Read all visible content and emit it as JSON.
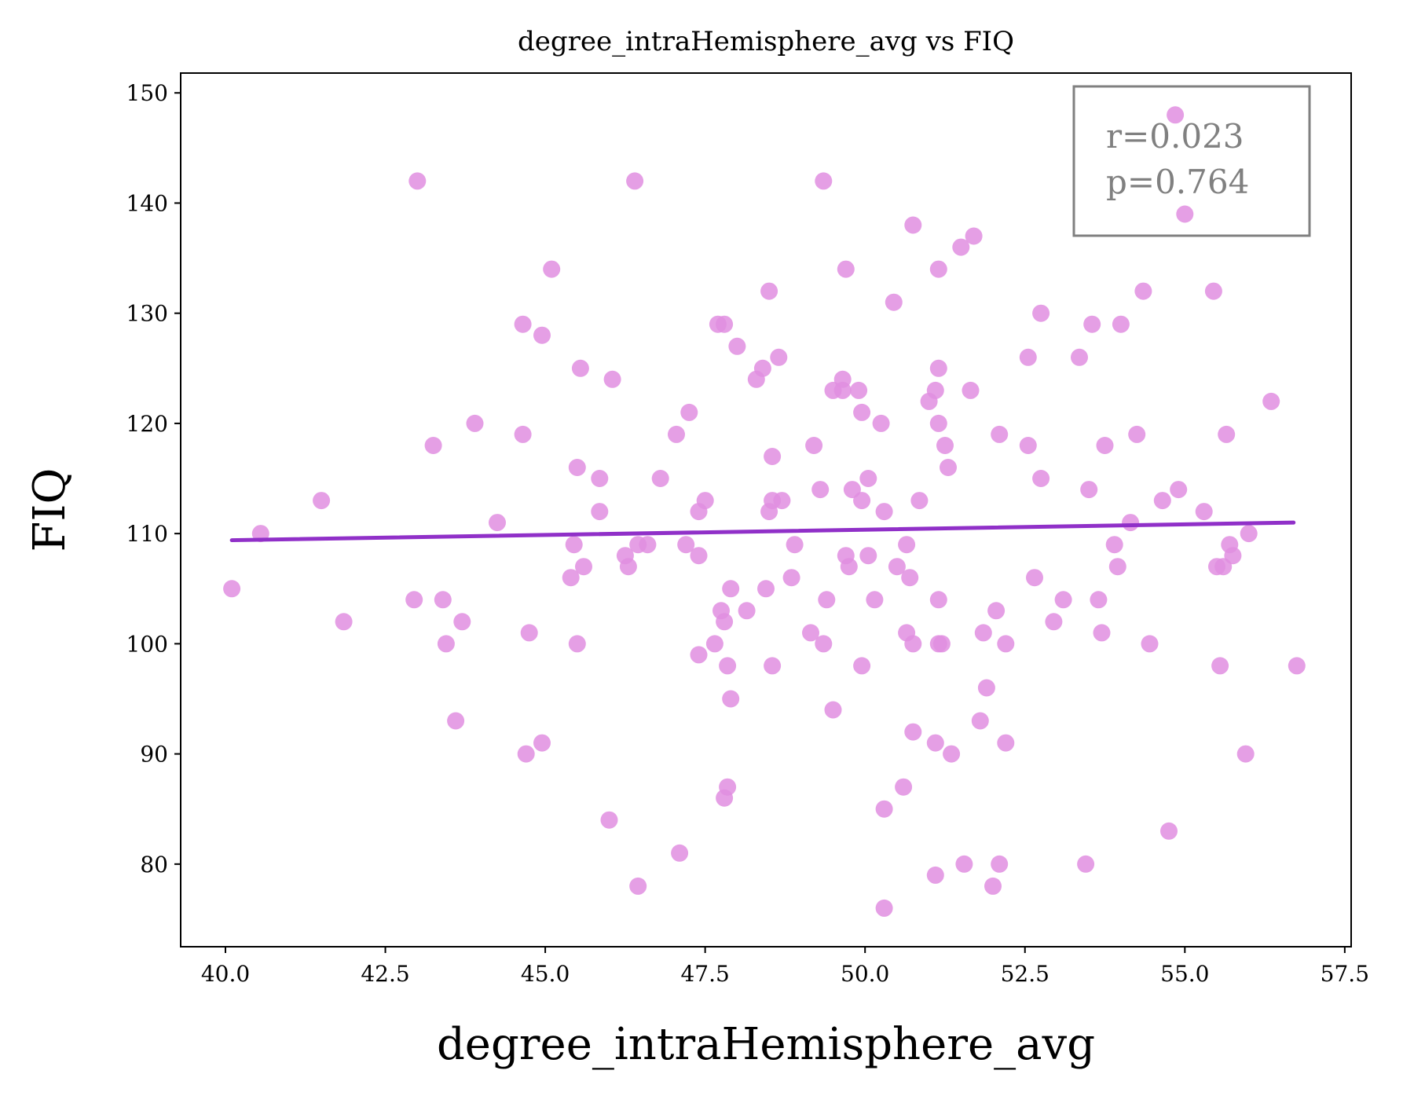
{
  "chart_data": {
    "type": "scatter",
    "title": "degree_intraHemisphere_avg vs FIQ",
    "xlabel": "degree_intraHemisphere_avg",
    "ylabel": "FIQ",
    "xlim": [
      39.3,
      57.6
    ],
    "ylim": [
      72.5,
      151.8
    ],
    "xticks": [
      40.0,
      42.5,
      45.0,
      47.5,
      50.0,
      52.5,
      55.0,
      57.5
    ],
    "xtick_labels": [
      "40.0",
      "42.5",
      "45.0",
      "47.5",
      "50.0",
      "52.5",
      "55.0",
      "57.5"
    ],
    "yticks": [
      80,
      90,
      100,
      110,
      120,
      130,
      140,
      150
    ],
    "ytick_labels": [
      "80",
      "90",
      "100",
      "110",
      "120",
      "130",
      "140",
      "150"
    ],
    "grid": false,
    "point_color": "#e08ee0",
    "line_color": "#9030c8",
    "annotation": {
      "line1": "r=0.023",
      "line2": "p=0.764",
      "placement": "top-right"
    },
    "regression": {
      "x": [
        40.1,
        56.7
      ],
      "y": [
        109.4,
        111.0
      ]
    },
    "points": [
      [
        40.1,
        105
      ],
      [
        40.55,
        110
      ],
      [
        41.5,
        113
      ],
      [
        41.85,
        102
      ],
      [
        42.95,
        104
      ],
      [
        43.0,
        142
      ],
      [
        43.25,
        118
      ],
      [
        43.4,
        104
      ],
      [
        43.45,
        100
      ],
      [
        43.6,
        93
      ],
      [
        43.7,
        102
      ],
      [
        43.9,
        120
      ],
      [
        44.25,
        111
      ],
      [
        44.65,
        129
      ],
      [
        44.65,
        119
      ],
      [
        44.7,
        90
      ],
      [
        44.75,
        101
      ],
      [
        44.95,
        91
      ],
      [
        44.95,
        128
      ],
      [
        45.1,
        134
      ],
      [
        45.4,
        106
      ],
      [
        45.45,
        109
      ],
      [
        45.5,
        116
      ],
      [
        45.5,
        100
      ],
      [
        45.55,
        125
      ],
      [
        45.6,
        107
      ],
      [
        45.85,
        115
      ],
      [
        45.85,
        112
      ],
      [
        46.0,
        84
      ],
      [
        46.05,
        124
      ],
      [
        46.25,
        108
      ],
      [
        46.3,
        107
      ],
      [
        46.4,
        142
      ],
      [
        46.45,
        109
      ],
      [
        46.45,
        78
      ],
      [
        46.6,
        109
      ],
      [
        46.8,
        115
      ],
      [
        47.05,
        119
      ],
      [
        47.1,
        81
      ],
      [
        47.2,
        109
      ],
      [
        47.25,
        121
      ],
      [
        47.4,
        108
      ],
      [
        47.4,
        112
      ],
      [
        47.4,
        99
      ],
      [
        47.5,
        113
      ],
      [
        47.65,
        100
      ],
      [
        47.7,
        129
      ],
      [
        47.75,
        103
      ],
      [
        47.8,
        102
      ],
      [
        47.8,
        129
      ],
      [
        47.8,
        86
      ],
      [
        47.85,
        98
      ],
      [
        47.85,
        87
      ],
      [
        47.9,
        105
      ],
      [
        47.9,
        95
      ],
      [
        48.0,
        127
      ],
      [
        48.15,
        103
      ],
      [
        48.3,
        124
      ],
      [
        48.4,
        125
      ],
      [
        48.45,
        105
      ],
      [
        48.5,
        112
      ],
      [
        48.5,
        132
      ],
      [
        48.55,
        117
      ],
      [
        48.55,
        98
      ],
      [
        48.55,
        113
      ],
      [
        48.65,
        126
      ],
      [
        48.7,
        113
      ],
      [
        48.85,
        106
      ],
      [
        48.9,
        109
      ],
      [
        49.15,
        101
      ],
      [
        49.2,
        118
      ],
      [
        49.3,
        114
      ],
      [
        49.35,
        100
      ],
      [
        49.35,
        142
      ],
      [
        49.4,
        104
      ],
      [
        49.5,
        123
      ],
      [
        49.5,
        94
      ],
      [
        49.65,
        124
      ],
      [
        49.65,
        123
      ],
      [
        49.7,
        134
      ],
      [
        49.7,
        108
      ],
      [
        49.75,
        107
      ],
      [
        49.8,
        114
      ],
      [
        49.9,
        123
      ],
      [
        49.95,
        121
      ],
      [
        49.95,
        113
      ],
      [
        49.95,
        98
      ],
      [
        50.05,
        115
      ],
      [
        50.05,
        108
      ],
      [
        50.15,
        104
      ],
      [
        50.25,
        120
      ],
      [
        50.3,
        112
      ],
      [
        50.3,
        85
      ],
      [
        50.3,
        76
      ],
      [
        50.45,
        131
      ],
      [
        50.5,
        107
      ],
      [
        50.6,
        87
      ],
      [
        50.65,
        101
      ],
      [
        50.65,
        109
      ],
      [
        50.7,
        106
      ],
      [
        50.75,
        138
      ],
      [
        50.75,
        100
      ],
      [
        50.75,
        92
      ],
      [
        50.85,
        113
      ],
      [
        51.0,
        122
      ],
      [
        51.1,
        79
      ],
      [
        51.1,
        91
      ],
      [
        51.1,
        123
      ],
      [
        51.15,
        134
      ],
      [
        51.15,
        125
      ],
      [
        51.15,
        120
      ],
      [
        51.15,
        104
      ],
      [
        51.15,
        100
      ],
      [
        51.2,
        100
      ],
      [
        51.25,
        118
      ],
      [
        51.3,
        116
      ],
      [
        51.35,
        90
      ],
      [
        51.5,
        136
      ],
      [
        51.55,
        80
      ],
      [
        51.65,
        123
      ],
      [
        51.7,
        137
      ],
      [
        51.8,
        93
      ],
      [
        51.85,
        101
      ],
      [
        51.9,
        96
      ],
      [
        52.0,
        78
      ],
      [
        52.05,
        103
      ],
      [
        52.1,
        80
      ],
      [
        52.1,
        119
      ],
      [
        52.2,
        100
      ],
      [
        52.2,
        91
      ],
      [
        52.55,
        126
      ],
      [
        52.55,
        118
      ],
      [
        52.65,
        106
      ],
      [
        52.75,
        130
      ],
      [
        52.75,
        115
      ],
      [
        52.95,
        102
      ],
      [
        53.1,
        104
      ],
      [
        53.35,
        126
      ],
      [
        53.45,
        80
      ],
      [
        53.5,
        114
      ],
      [
        53.55,
        129
      ],
      [
        53.65,
        104
      ],
      [
        53.7,
        101
      ],
      [
        53.75,
        118
      ],
      [
        53.9,
        109
      ],
      [
        53.95,
        107
      ],
      [
        54.0,
        129
      ],
      [
        54.15,
        111
      ],
      [
        54.25,
        119
      ],
      [
        54.35,
        132
      ],
      [
        54.45,
        100
      ],
      [
        54.65,
        113
      ],
      [
        54.75,
        83
      ],
      [
        54.85,
        148
      ],
      [
        54.9,
        114
      ],
      [
        55.0,
        139
      ],
      [
        55.3,
        112
      ],
      [
        55.45,
        132
      ],
      [
        55.5,
        107
      ],
      [
        55.55,
        98
      ],
      [
        55.6,
        107
      ],
      [
        55.65,
        119
      ],
      [
        55.7,
        109
      ],
      [
        55.75,
        108
      ],
      [
        55.95,
        90
      ],
      [
        56.0,
        110
      ],
      [
        56.35,
        122
      ],
      [
        56.75,
        98
      ]
    ]
  }
}
